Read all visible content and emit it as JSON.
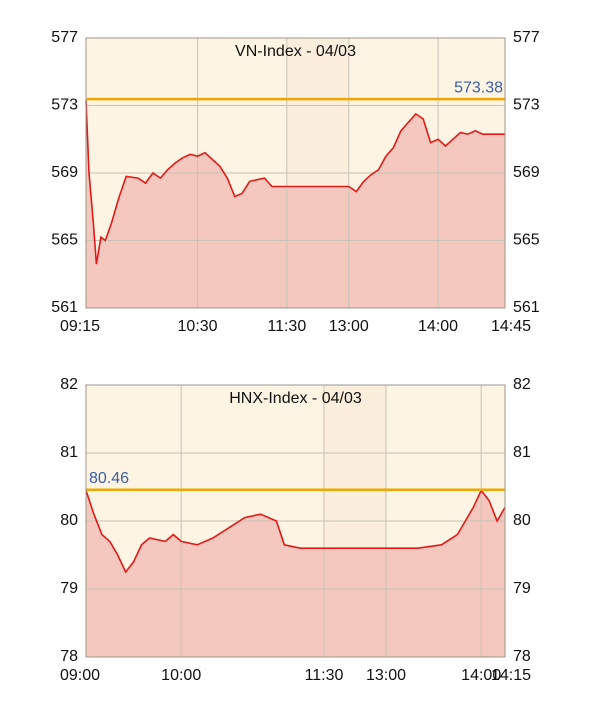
{
  "chart_data": [
    {
      "type": "line",
      "title": "VN-Index - 04/03",
      "x": [
        "09:15",
        "09:17",
        "09:20",
        "09:22",
        "09:25",
        "09:28",
        "09:32",
        "09:37",
        "09:42",
        "09:50",
        "09:55",
        "10:00",
        "10:05",
        "10:10",
        "10:15",
        "10:20",
        "10:25",
        "10:30",
        "10:35",
        "10:40",
        "10:45",
        "10:50",
        "10:55",
        "11:00",
        "11:05",
        "11:10",
        "11:15",
        "11:20",
        "11:25",
        "11:30",
        "13:00",
        "13:05",
        "13:10",
        "13:15",
        "13:20",
        "13:25",
        "13:30",
        "13:35",
        "13:40",
        "13:45",
        "13:50",
        "13:55",
        "14:00",
        "14:05",
        "14:10",
        "14:15",
        "14:20",
        "14:25",
        "14:30",
        "14:35",
        "14:40",
        "14:45"
      ],
      "values": [
        573.3,
        569,
        566,
        563.6,
        565.2,
        565,
        566,
        567.5,
        568.8,
        568.7,
        568.4,
        569,
        568.7,
        569.2,
        569.6,
        569.9,
        570.1,
        570,
        570.2,
        569.8,
        569.4,
        568.7,
        567.6,
        567.8,
        568.5,
        568.6,
        568.7,
        568.2,
        568.2,
        568.2,
        568.2,
        567.9,
        568.5,
        568.9,
        569.2,
        570,
        570.5,
        571.5,
        572,
        572.5,
        572.2,
        570.8,
        571,
        570.6,
        571,
        571.4,
        571.3,
        571.5,
        571.3,
        571.3,
        571.3,
        571.3
      ],
      "line_color": "#e31a1a",
      "fill_color": "#f5c8bf",
      "reference": {
        "value": 573.38,
        "label": "573.38"
      },
      "reference_color": "#f0a800",
      "session_break": [
        "11:30",
        "13:00"
      ],
      "ylim": [
        561,
        577
      ],
      "yticks": [
        561,
        565,
        569,
        573,
        577
      ],
      "xticks": [
        "09:15",
        "10:30",
        "11:30",
        "13:00",
        "14:00",
        "14:45"
      ],
      "grid": true
    },
    {
      "type": "line",
      "title": "HNX-Index - 04/03",
      "x": [
        "09:00",
        "09:05",
        "09:10",
        "09:15",
        "09:20",
        "09:25",
        "09:30",
        "09:35",
        "09:40",
        "09:50",
        "09:55",
        "10:00",
        "10:10",
        "10:20",
        "10:30",
        "10:40",
        "10:50",
        "11:00",
        "11:05",
        "11:15",
        "11:30",
        "13:00",
        "13:20",
        "13:35",
        "13:45",
        "13:55",
        "14:00",
        "14:05",
        "14:10",
        "14:15"
      ],
      "values": [
        80.45,
        80.1,
        79.8,
        79.7,
        79.5,
        79.25,
        79.4,
        79.65,
        79.75,
        79.7,
        79.8,
        79.7,
        79.65,
        79.75,
        79.9,
        80.05,
        80.1,
        80,
        79.65,
        79.6,
        79.6,
        79.6,
        79.6,
        79.65,
        79.8,
        80.2,
        80.45,
        80.3,
        80,
        80.2
      ],
      "line_color": "#e31a1a",
      "fill_color": "#f5c8bf",
      "reference": {
        "value": 80.46,
        "label": "80.46"
      },
      "reference_color": "#f0a800",
      "session_break": [
        "11:30",
        "13:00"
      ],
      "ylim": [
        78,
        82
      ],
      "yticks": [
        78,
        79,
        80,
        81,
        82
      ],
      "xticks": [
        "09:00",
        "10:00",
        "11:30",
        "13:00",
        "14:00",
        "14:15"
      ],
      "grid": true
    }
  ]
}
